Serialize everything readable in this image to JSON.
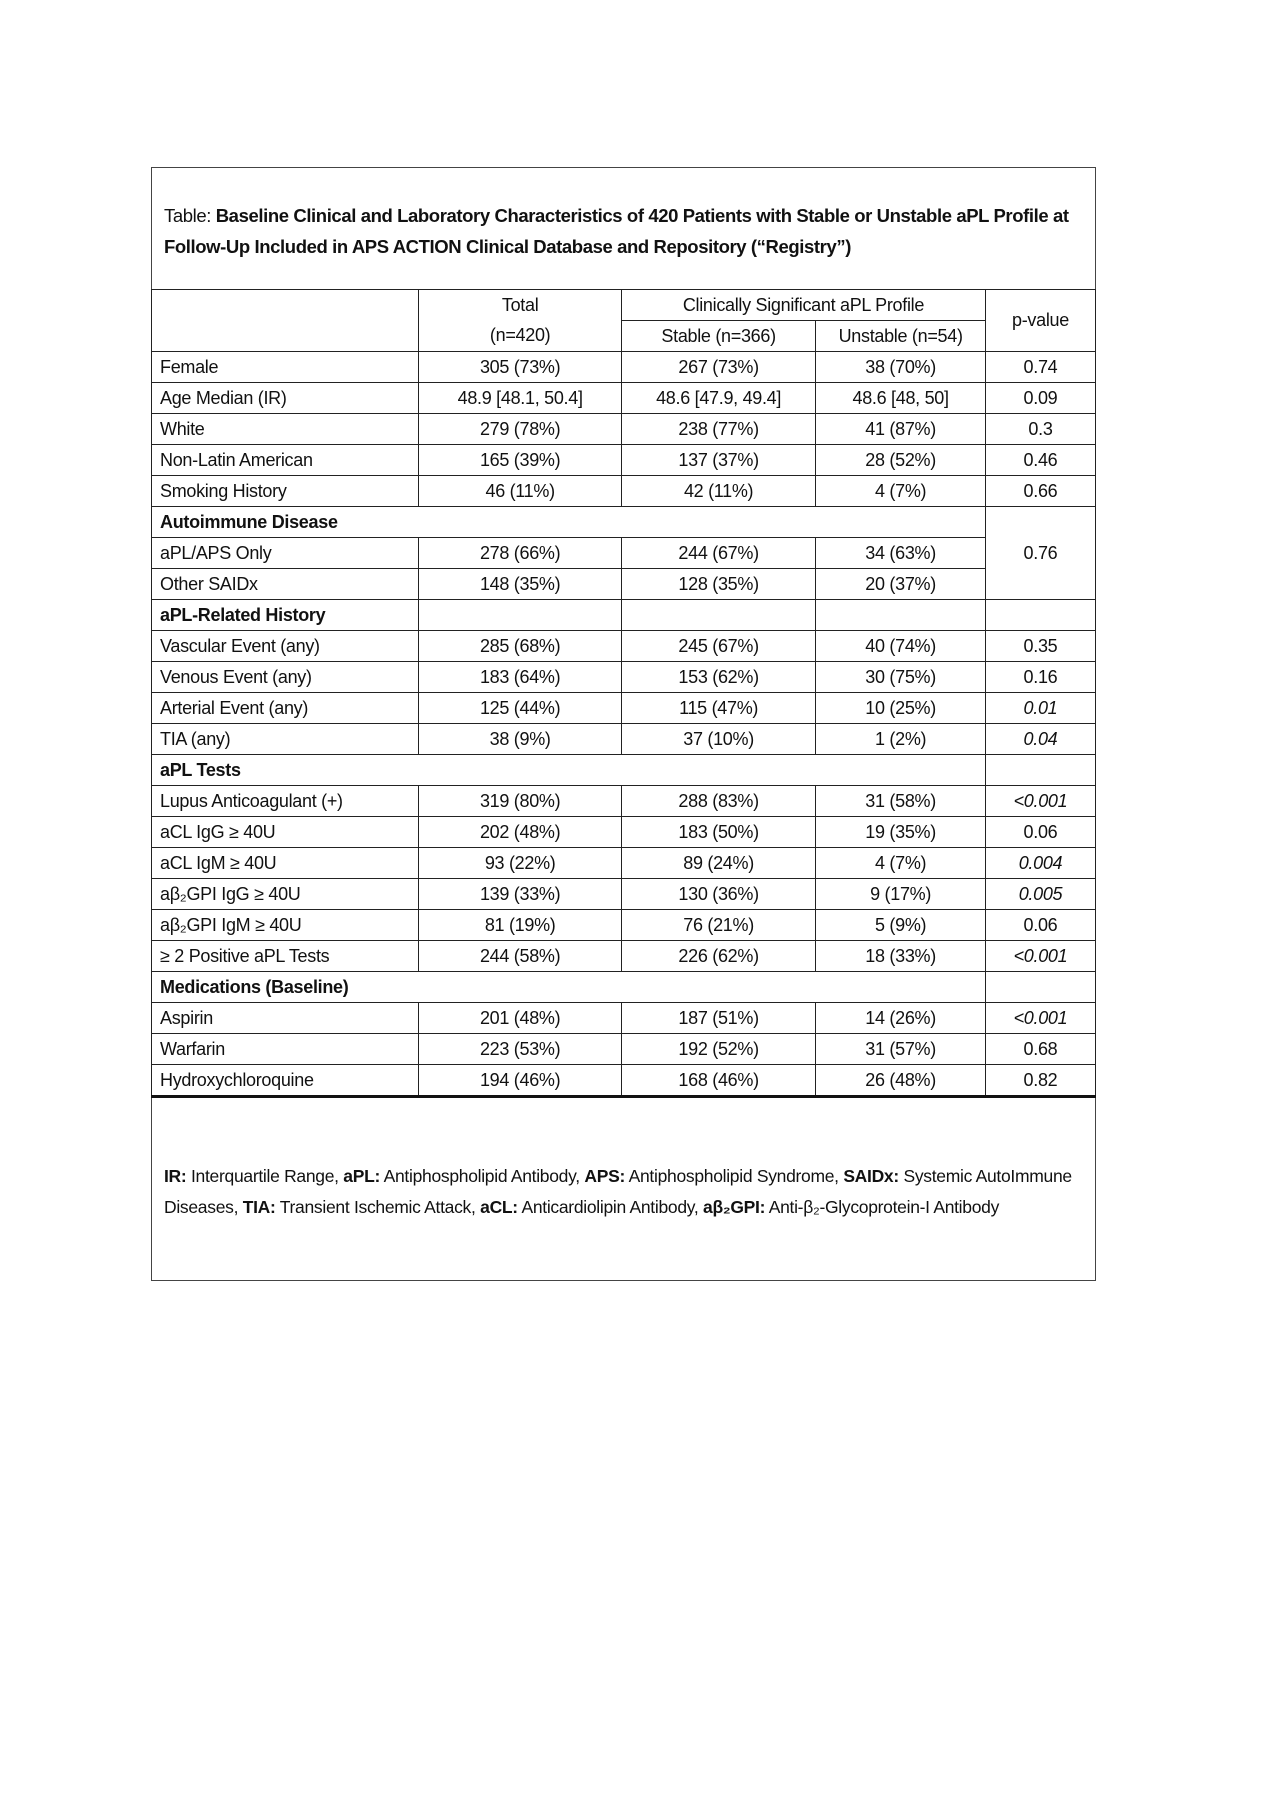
{
  "title": {
    "lead": "Table:",
    "text": "Baseline Clinical and Laboratory Characteristics of 420 Patients with Stable or Unstable aPL Profile at Follow-Up Included in APS ACTION Clinical Database and Repository (“Registry”)"
  },
  "header": {
    "total": "Total",
    "total_n": "(n=420)",
    "group": "Clinically Significant aPL Profile",
    "stable": "Stable (n=366)",
    "unstable": "Unstable (n=54)",
    "pvalue": "p-value"
  },
  "rows": [
    {
      "label": "Female",
      "total": "305 (73%)",
      "stable": "267 (73%)",
      "unstable": "38 (70%)",
      "p": "0.74"
    },
    {
      "label": "Age Median (IR)",
      "total": "48.9 [48.1, 50.4]",
      "stable": "48.6 [47.9, 49.4]",
      "unstable": "48.6 [48, 50]",
      "p": "0.09"
    },
    {
      "label": "White",
      "total": "279 (78%)",
      "stable": "238 (77%)",
      "unstable": "41 (87%)",
      "p": "0.3"
    },
    {
      "label": "Non-Latin American",
      "total": "165 (39%)",
      "stable": "137 (37%)",
      "unstable": "28 (52%)",
      "p": "0.46"
    },
    {
      "label": "Smoking History",
      "total": "46 (11%)",
      "stable": "42 (11%)",
      "unstable": "4 (7%)",
      "p": "0.66"
    },
    {
      "section": "Autoimmune Disease",
      "p": "0.76",
      "p_rowspan": 3,
      "span": 4
    },
    {
      "label": "aPL/APS Only",
      "total": "278 (66%)",
      "stable": "244 (67%)",
      "unstable": "34 (63%)",
      "merged_p": true
    },
    {
      "label": "Other SAIDx",
      "total": "148 (35%)",
      "stable": "128 (35%)",
      "unstable": "20 (37%)",
      "merged_p": true
    },
    {
      "section": "aPL-Related History",
      "span": 1
    },
    {
      "label": "Vascular Event (any)",
      "total": "285 (68%)",
      "stable": "245 (67%)",
      "unstable": "40 (74%)",
      "p": "0.35"
    },
    {
      "label": "Venous Event (any)",
      "total": "183 (64%)",
      "stable": "153 (62%)",
      "unstable": "30 (75%)",
      "p": "0.16"
    },
    {
      "label": "Arterial Event (any)",
      "total": "125 (44%)",
      "stable": "115 (47%)",
      "unstable": "10 (25%)",
      "p": "0.01",
      "italic": true
    },
    {
      "label": "TIA (any)",
      "total": "38 (9%)",
      "stable": "37 (10%)",
      "unstable": "1 (2%)",
      "p": "0.04",
      "italic": true
    },
    {
      "section": "aPL Tests",
      "span": 4
    },
    {
      "label": "Lupus Anticoagulant (+)",
      "total": "319 (80%)",
      "stable": "288 (83%)",
      "unstable": "31 (58%)",
      "p": "<0.001",
      "italic": true
    },
    {
      "label": "aCL IgG ≥ 40U",
      "total": "202 (48%)",
      "stable": "183 (50%)",
      "unstable": "19 (35%)",
      "p": "0.06"
    },
    {
      "label": "aCL IgM ≥ 40U",
      "total": "93 (22%)",
      "stable": "89 (24%)",
      "unstable": "4 (7%)",
      "p": "0.004",
      "italic": true
    },
    {
      "label": "aβ₂GPI IgG ≥ 40U",
      "total": "139 (33%)",
      "stable": "130 (36%)",
      "unstable": "9 (17%)",
      "p": "0.005",
      "italic": true
    },
    {
      "label": "aβ₂GPI IgM ≥ 40U",
      "total": "81 (19%)",
      "stable": "76 (21%)",
      "unstable": "5 (9%)",
      "p": "0.06"
    },
    {
      "label": "≥ 2 Positive aPL Tests",
      "total": "244 (58%)",
      "stable": "226 (62%)",
      "unstable": "18 (33%)",
      "p": "<0.001",
      "italic": true
    },
    {
      "section": "Medications (Baseline)",
      "span": 4
    },
    {
      "label": "Aspirin",
      "total": "201 (48%)",
      "stable": "187 (51%)",
      "unstable": "14 (26%)",
      "p": "<0.001",
      "italic": true
    },
    {
      "label": "Warfarin",
      "total": "223 (53%)",
      "stable": "192 (52%)",
      "unstable": "31 (57%)",
      "p": "0.68"
    },
    {
      "label": "Hydroxychloroquine",
      "total": "194 (46%)",
      "stable": "168 (46%)",
      "unstable": "26 (48%)",
      "p": "0.82"
    }
  ],
  "notes": [
    {
      "term": "IR:",
      "def": "Interquartile Range,"
    },
    {
      "term": "aPL:",
      "def": "Antiphospholipid Antibody,"
    },
    {
      "term": "APS:",
      "def": "Antiphospholipid Syndrome,"
    },
    {
      "term": "SAIDx:",
      "def": "Systemic AutoImmune Diseases,"
    },
    {
      "term": "TIA:",
      "def": "Transient Ischemic Attack,"
    },
    {
      "term": "aCL:",
      "def": "Anticardiolipin Antibody,"
    },
    {
      "term": "aβ₂GPI:",
      "def": "Anti-β₂-Glycoprotein-I Antibody"
    }
  ]
}
